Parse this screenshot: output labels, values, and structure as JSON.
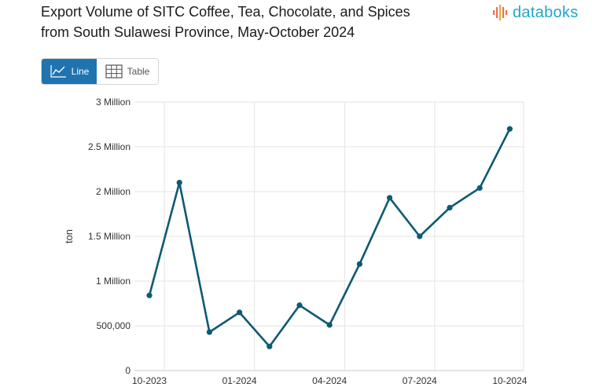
{
  "title": {
    "line1": "Export Volume of SITC Coffee, Tea, Chocolate, and Spices",
    "line2": "from South Sulawesi Province, May-October 2024"
  },
  "brand": {
    "name": "databoks",
    "icon": "databoks-logo-icon",
    "color": "#23a6c7"
  },
  "view_toggle": {
    "line_label": "Line",
    "table_label": "Table",
    "active": "line",
    "active_color": "#1f74b0"
  },
  "chart_data": {
    "type": "line",
    "ylabel": "ton",
    "xlabel": "",
    "ylim": [
      0,
      3000000
    ],
    "y_ticks": [
      {
        "value": 0,
        "label": "0"
      },
      {
        "value": 500000,
        "label": "500,000"
      },
      {
        "value": 1000000,
        "label": "1 Million"
      },
      {
        "value": 1500000,
        "label": "1.5 Million"
      },
      {
        "value": 2000000,
        "label": "2 Million"
      },
      {
        "value": 2500000,
        "label": "2.5 Million"
      },
      {
        "value": 3000000,
        "label": "3 Million"
      }
    ],
    "x": [
      "10-2023",
      "11-2023",
      "12-2023",
      "01-2024",
      "02-2024",
      "03-2024",
      "04-2024",
      "05-2024",
      "06-2024",
      "07-2024",
      "08-2024",
      "09-2024",
      "10-2024"
    ],
    "x_tick_labels": [
      "10-2023",
      "01-2024",
      "04-2024",
      "07-2024",
      "10-2024"
    ],
    "series": [
      {
        "color": "#0d5a73",
        "values": [
          840000,
          2100000,
          430000,
          650000,
          270000,
          730000,
          510000,
          1190000,
          1930000,
          1500000,
          1820000,
          2040000,
          2700000
        ]
      }
    ],
    "grid": true,
    "legend": "none"
  }
}
